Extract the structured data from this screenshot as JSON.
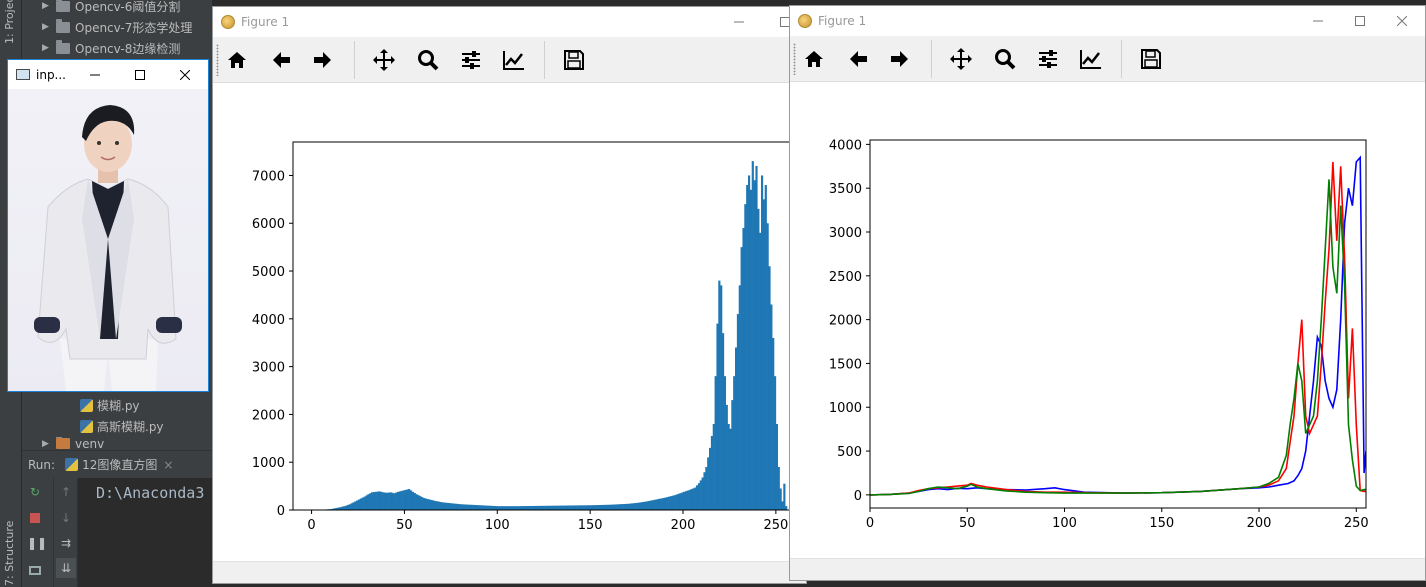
{
  "ide": {
    "side_labels": [
      "1: Project",
      "7: Structure"
    ],
    "tree_items": [
      {
        "label": "Opencv-6阈值分割",
        "type": "folder"
      },
      {
        "label": "Opencv-7形态学处理",
        "type": "folder"
      },
      {
        "label": "Opencv-8边缘检测",
        "type": "folder"
      },
      {
        "label": "模糊.py",
        "type": "file"
      },
      {
        "label": "高斯模糊.py",
        "type": "file"
      },
      {
        "label": "venv",
        "type": "folder"
      }
    ],
    "run_label": "Run:",
    "run_tab": "12图像直方图",
    "console_text": "D:\\Anaconda3",
    "colors": {
      "bg": "#2b2b2b",
      "panel": "#3c3f41",
      "text": "#bbbbbb"
    }
  },
  "image_window": {
    "title": "inp...",
    "icon": "window-app-icon",
    "controls": [
      "minimize-icon",
      "maximize-icon",
      "close-icon"
    ]
  },
  "figure1": {
    "title": "Figure 1",
    "toolbar": [
      "home-icon",
      "back-arrow-icon",
      "forward-arrow-icon",
      "pan-icon",
      "zoom-icon",
      "configure-subplots-icon",
      "edit-axes-icon",
      "save-icon"
    ]
  },
  "figure2": {
    "title": "Figure 1",
    "toolbar": [
      "home-icon",
      "back-arrow-icon",
      "forward-arrow-icon",
      "pan-icon",
      "zoom-icon",
      "configure-subplots-icon",
      "edit-axes-icon",
      "save-icon"
    ]
  },
  "chart_data": [
    {
      "type": "bar",
      "title": "",
      "xlabel": "",
      "ylabel": "",
      "xlim": [
        -10,
        270
      ],
      "ylim": [
        0,
        7700
      ],
      "x_ticks": [
        "0",
        "50",
        "100",
        "150",
        "200",
        "250"
      ],
      "y_ticks": [
        "0",
        "1000",
        "2000",
        "3000",
        "4000",
        "5000",
        "6000",
        "7000"
      ],
      "bar_color": "#1f77b4",
      "bins": 256,
      "x": [
        0,
        5,
        10,
        15,
        18,
        20,
        22,
        24,
        26,
        28,
        30,
        32,
        34,
        36,
        38,
        40,
        42,
        44,
        46,
        48,
        50,
        52,
        54,
        56,
        58,
        60,
        63,
        66,
        70,
        75,
        80,
        85,
        90,
        95,
        100,
        110,
        120,
        130,
        140,
        150,
        160,
        170,
        175,
        180,
        185,
        190,
        195,
        200,
        203,
        206,
        208,
        210,
        212,
        214,
        216,
        217,
        218,
        219,
        220,
        221,
        222,
        223,
        224,
        225,
        226,
        227,
        228,
        229,
        230,
        231,
        232,
        233,
        234,
        235,
        236,
        237,
        238,
        239,
        240,
        241,
        242,
        243,
        244,
        245,
        246,
        247,
        248,
        249,
        250,
        251,
        252,
        253,
        254,
        255
      ],
      "values": [
        0,
        5,
        20,
        60,
        90,
        120,
        160,
        200,
        240,
        280,
        330,
        370,
        380,
        390,
        370,
        360,
        370,
        350,
        380,
        400,
        420,
        440,
        380,
        330,
        290,
        250,
        220,
        190,
        160,
        140,
        120,
        110,
        100,
        90,
        80,
        80,
        85,
        90,
        95,
        100,
        110,
        130,
        150,
        180,
        220,
        260,
        310,
        380,
        420,
        470,
        560,
        680,
        900,
        1300,
        1800,
        2800,
        3900,
        4800,
        4700,
        3700,
        2800,
        2200,
        1800,
        1700,
        2300,
        2800,
        3400,
        4100,
        4700,
        5500,
        5900,
        6400,
        6800,
        7000,
        6700,
        7300,
        6900,
        7200,
        6300,
        5800,
        7000,
        6500,
        6800,
        6000,
        5100,
        4300,
        3600,
        2800,
        1800,
        900,
        450,
        180,
        550,
        80
      ]
    },
    {
      "type": "line",
      "title": "",
      "xlabel": "",
      "ylabel": "",
      "xlim": [
        0,
        255
      ],
      "ylim": [
        -150,
        4050
      ],
      "x_ticks": [
        "0",
        "50",
        "100",
        "150",
        "200",
        "250"
      ],
      "y_ticks": [
        "0",
        "500",
        "1000",
        "1500",
        "2000",
        "2500",
        "3000",
        "3500",
        "4000"
      ],
      "series": [
        {
          "color": "#0000ff",
          "x": [
            0,
            10,
            20,
            25,
            30,
            35,
            40,
            45,
            50,
            55,
            60,
            70,
            80,
            90,
            95,
            100,
            110,
            130,
            150,
            170,
            190,
            200,
            205,
            210,
            215,
            218,
            220,
            222,
            224,
            226,
            228,
            230,
            232,
            234,
            236,
            238,
            240,
            242,
            244,
            246,
            248,
            250,
            252,
            254,
            255
          ],
          "y": [
            0,
            5,
            20,
            40,
            60,
            70,
            60,
            75,
            70,
            80,
            70,
            60,
            55,
            70,
            80,
            60,
            30,
            20,
            25,
            40,
            70,
            80,
            90,
            110,
            130,
            160,
            220,
            300,
            500,
            900,
            1300,
            1800,
            1700,
            1300,
            1100,
            1000,
            1200,
            2000,
            3100,
            3500,
            3300,
            3800,
            3850,
            250,
            500
          ]
        },
        {
          "color": "#ff0000",
          "x": [
            0,
            10,
            20,
            25,
            30,
            35,
            40,
            45,
            50,
            52,
            55,
            60,
            70,
            80,
            90,
            100,
            110,
            130,
            150,
            170,
            190,
            200,
            205,
            210,
            214,
            216,
            218,
            220,
            222,
            224,
            226,
            228,
            230,
            232,
            234,
            236,
            238,
            240,
            242,
            244,
            246,
            248,
            250,
            252,
            254,
            255
          ],
          "y": [
            0,
            5,
            20,
            50,
            70,
            80,
            90,
            100,
            110,
            130,
            110,
            90,
            60,
            40,
            30,
            30,
            25,
            20,
            25,
            40,
            70,
            90,
            110,
            160,
            300,
            600,
            900,
            1500,
            2000,
            900,
            700,
            800,
            900,
            1500,
            2200,
            2800,
            3800,
            2900,
            3750,
            2700,
            1100,
            1900,
            800,
            50,
            40,
            40
          ]
        },
        {
          "color": "#008000",
          "x": [
            0,
            10,
            20,
            25,
            30,
            35,
            40,
            45,
            50,
            52,
            55,
            60,
            70,
            80,
            90,
            100,
            110,
            130,
            150,
            170,
            190,
            200,
            205,
            210,
            214,
            216,
            218,
            220,
            222,
            224,
            226,
            228,
            230,
            232,
            234,
            236,
            238,
            240,
            242,
            244,
            246,
            248,
            250,
            252,
            254,
            255
          ],
          "y": [
            0,
            5,
            15,
            40,
            70,
            90,
            80,
            70,
            100,
            120,
            90,
            70,
            45,
            30,
            25,
            20,
            20,
            20,
            25,
            40,
            70,
            90,
            130,
            200,
            450,
            800,
            1100,
            1500,
            1300,
            700,
            800,
            900,
            1300,
            2000,
            2800,
            3600,
            2600,
            2300,
            3300,
            2400,
            800,
            400,
            100,
            50,
            60,
            60
          ]
        }
      ]
    }
  ]
}
